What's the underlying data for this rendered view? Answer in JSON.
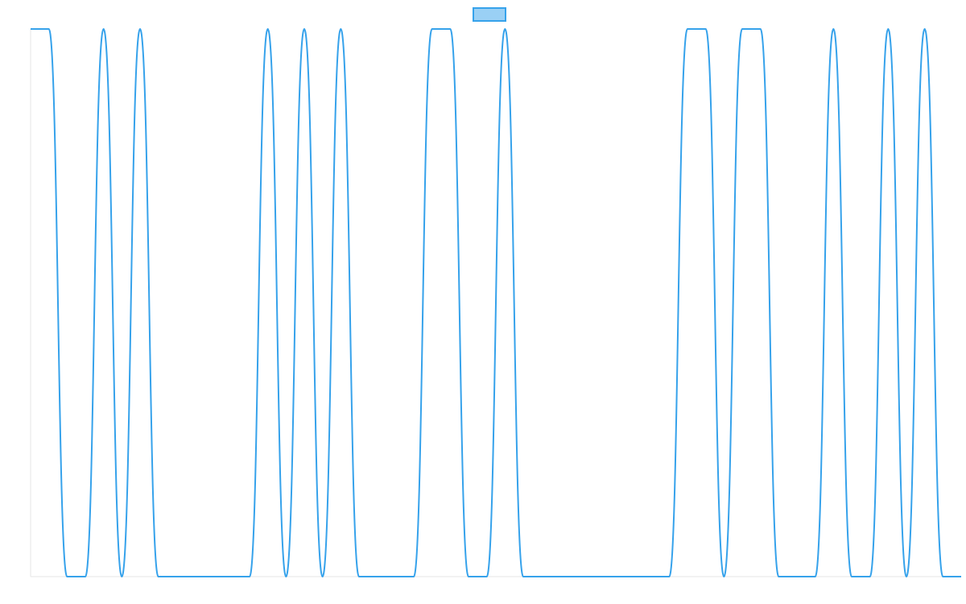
{
  "chart_data": {
    "type": "line",
    "title": "",
    "xlabel": "",
    "ylabel": "",
    "legend": {
      "position": "top-center",
      "entries": [
        {
          "name": "",
          "fill": "#9ad0f5",
          "stroke": "#36a2eb"
        }
      ]
    },
    "grid": false,
    "ylim": [
      0,
      1
    ],
    "xlim": [
      0,
      51
    ],
    "series": [
      {
        "name": "",
        "color": "#36a2eb",
        "x": [
          0,
          1,
          2,
          3,
          4,
          5,
          6,
          7,
          8,
          9,
          10,
          11,
          12,
          13,
          14,
          15,
          16,
          17,
          18,
          19,
          20,
          21,
          22,
          23,
          24,
          25,
          26,
          27,
          28,
          29,
          30,
          31,
          32,
          33,
          34,
          35,
          36,
          37,
          38,
          39,
          40,
          41,
          42,
          43,
          44,
          45,
          46,
          47,
          48,
          49,
          50,
          51
        ],
        "values": [
          1,
          1,
          0,
          0,
          1,
          0,
          1,
          0,
          0,
          0,
          0,
          0,
          0,
          1,
          0,
          1,
          0,
          1,
          0,
          0,
          0,
          0,
          1,
          1,
          0,
          0,
          1,
          0,
          0,
          0,
          0,
          0,
          0,
          0,
          0,
          0,
          1,
          1,
          0,
          1,
          1,
          0,
          0,
          0,
          1,
          0,
          0,
          1,
          0,
          1,
          0,
          0
        ]
      }
    ]
  }
}
